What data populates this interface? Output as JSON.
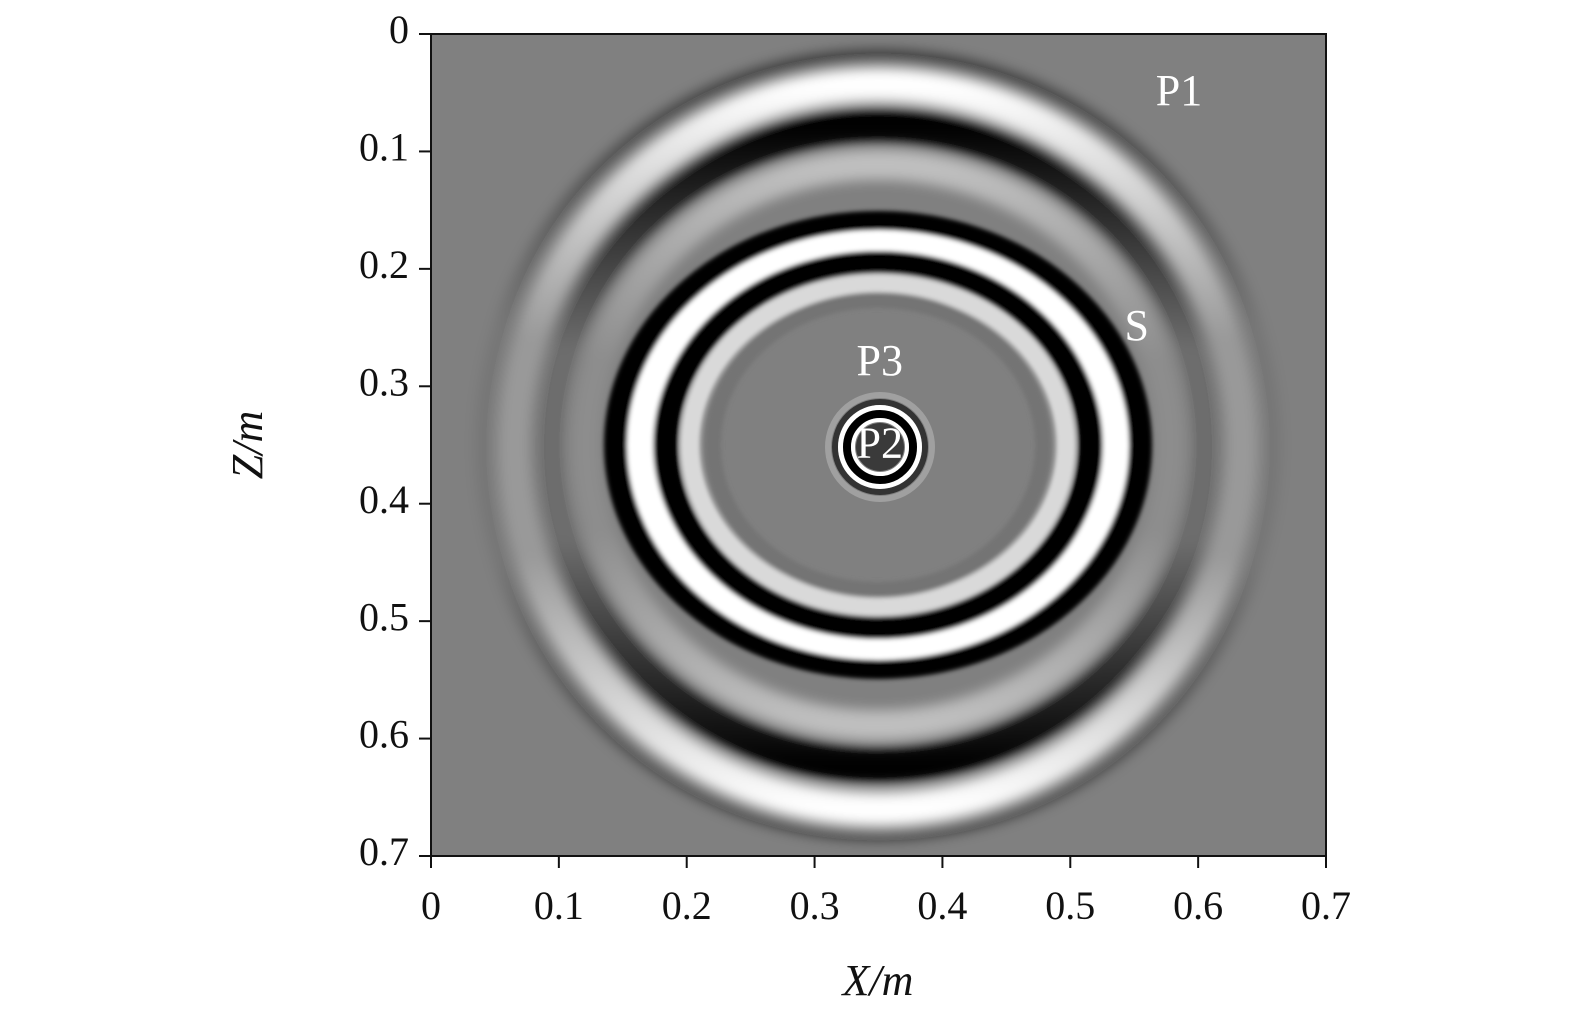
{
  "chart_data": {
    "type": "image",
    "xlabel": "X/m",
    "ylabel": "Z/m",
    "xlim": [
      0,
      0.7
    ],
    "xticks": [
      0,
      0.1,
      0.2,
      0.3,
      0.4,
      0.5,
      0.6,
      0.7
    ],
    "ylim": [
      0.7,
      0
    ],
    "yticks": [
      0,
      0.1,
      0.2,
      0.3,
      0.4,
      0.5,
      0.6,
      0.7
    ],
    "annotations": [
      {
        "text": "P1",
        "x": 0.585,
        "y": 0.052
      },
      {
        "text": "S",
        "x": 0.552,
        "y": 0.252
      },
      {
        "text": "P3",
        "x": 0.351,
        "y": 0.282
      },
      {
        "text": "P2",
        "x": 0.351,
        "y": 0.352
      }
    ]
  }
}
